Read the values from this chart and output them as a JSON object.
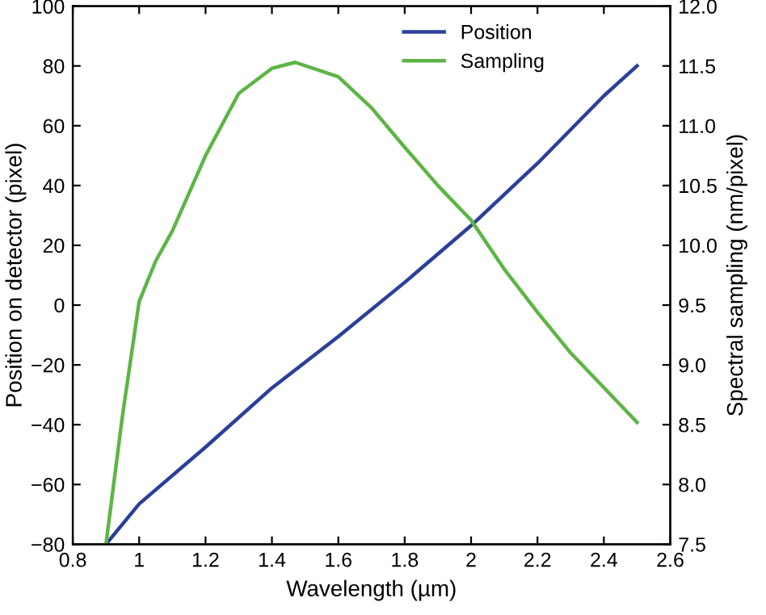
{
  "chart_data": {
    "type": "line",
    "xlabel": "Wavelength (µm)",
    "ylabel": "Position on detector (pixel)",
    "y2label": "Spectral sampling (nm/pixel)",
    "xlim": [
      0.8,
      2.6
    ],
    "xticks": [
      0.8,
      1,
      1.2,
      1.4,
      1.6,
      1.8,
      2,
      2.2,
      2.4,
      2.6
    ],
    "ylim": [
      -80,
      100
    ],
    "yticks": [
      {
        "value": -80,
        "label": "−80"
      },
      {
        "value": -60,
        "label": "−60"
      },
      {
        "value": -40,
        "label": "−40"
      },
      {
        "value": -20,
        "label": "−20"
      },
      0,
      20,
      40,
      60,
      80,
      100
    ],
    "y2lim": [
      7.5,
      12.0
    ],
    "y2ticks": [
      7.5,
      {
        "value": 8,
        "label": "8.0"
      },
      8.5,
      {
        "value": 9,
        "label": "9.0"
      },
      9.5,
      {
        "value": 10,
        "label": "10.0"
      },
      10.5,
      {
        "value": 11,
        "label": "11.0"
      },
      11.5,
      {
        "value": 12,
        "label": "12.0"
      }
    ],
    "legend": "top right",
    "grid": false,
    "marker": "none",
    "line_style": "solid",
    "series": [
      {
        "name": "Position",
        "color": "#2b3f9a",
        "x": [
          0.9,
          1.0,
          1.2,
          1.4,
          1.6,
          1.8,
          2.0,
          2.2,
          2.4,
          2.5
        ],
        "values": [
          -80,
          -66.5,
          -47.5,
          -27.7,
          -10.5,
          7.6,
          26.6,
          47.4,
          70,
          80
        ]
      },
      {
        "name": "Sampling",
        "color": "#5db545",
        "axis": "y2",
        "x": [
          0.9,
          0.95,
          1.0,
          1.05,
          1.1,
          1.2,
          1.3,
          1.4,
          1.47,
          1.6,
          1.7,
          1.8,
          1.9,
          2.0,
          2.1,
          2.2,
          2.3,
          2.4,
          2.5
        ],
        "values": [
          7.5,
          8.58,
          9.53,
          9.87,
          10.12,
          10.75,
          11.27,
          11.48,
          11.53,
          11.41,
          11.15,
          10.82,
          10.5,
          10.21,
          9.8,
          9.44,
          9.1,
          8.81,
          8.52
        ]
      }
    ]
  }
}
